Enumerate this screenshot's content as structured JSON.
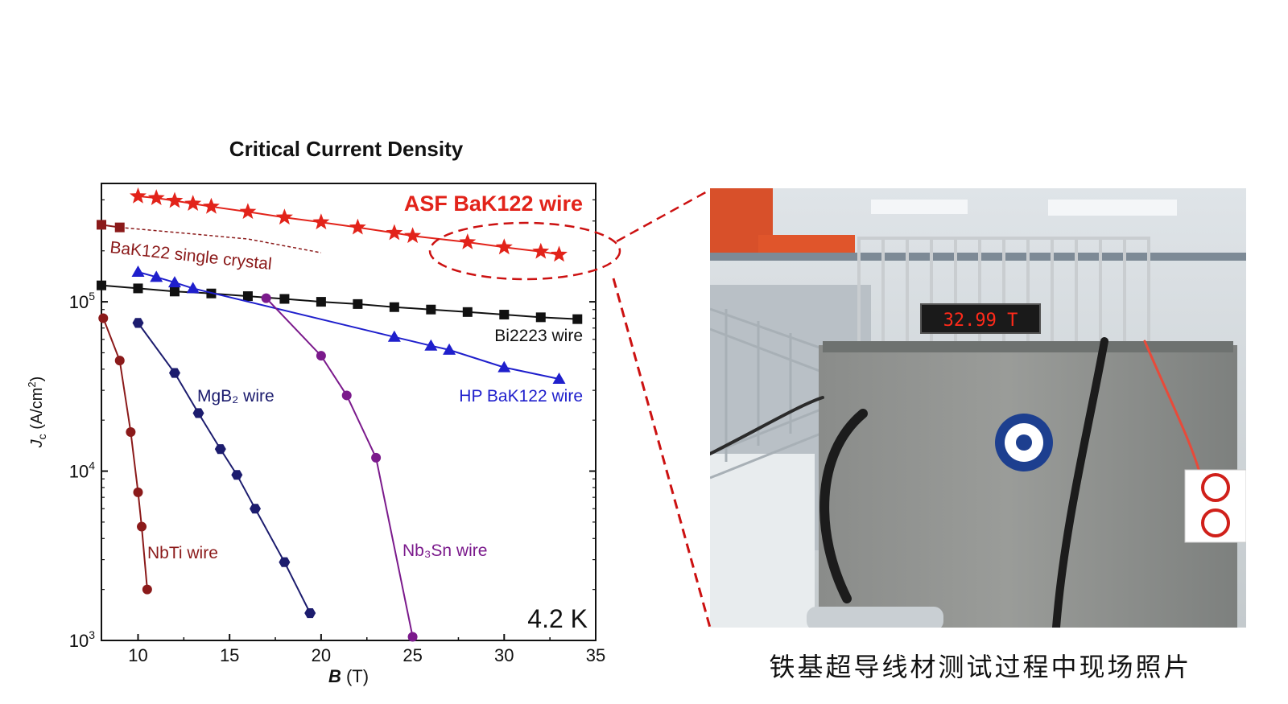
{
  "chart_data": {
    "type": "line",
    "title": "Critical Current Density",
    "xlabel": "B (T)",
    "ylabel": "Jc (A/cm²)",
    "xlim": [
      8,
      35
    ],
    "ylim": [
      1000,
      500000
    ],
    "yscale": "log",
    "xticks": [
      "10",
      "15",
      "20",
      "25",
      "30",
      "35"
    ],
    "yticks": [
      {
        "value": 100000,
        "base": "10",
        "exp": "5"
      },
      {
        "value": 10000,
        "base": "10",
        "exp": "4"
      },
      {
        "value": 1000,
        "base": "10",
        "exp": "3"
      }
    ],
    "annotation_temperature": "4.2 K",
    "series": [
      {
        "name": "ASF BaK122 wire",
        "color": "#e2231a",
        "marker": "star",
        "x": [
          10,
          11,
          12,
          13,
          14,
          16,
          18,
          20,
          22,
          24,
          25,
          28,
          30,
          32,
          33
        ],
        "y": [
          420000,
          410000,
          395000,
          380000,
          365000,
          340000,
          315000,
          295000,
          275000,
          255000,
          245000,
          225000,
          210000,
          198000,
          190000
        ]
      },
      {
        "name": "BaK122 single crystal",
        "color": "#8b1a1a",
        "marker": "square",
        "x": [
          8,
          9,
          16,
          20
        ],
        "y": [
          285000,
          275000,
          235000,
          195000
        ]
      },
      {
        "name": "Bi2223 wire",
        "color": "#111111",
        "marker": "square",
        "x": [
          8,
          10,
          12,
          14,
          16,
          18,
          20,
          22,
          24,
          26,
          28,
          30,
          32,
          34
        ],
        "y": [
          125000,
          120000,
          115000,
          112000,
          108000,
          104000,
          100000,
          97000,
          93000,
          90000,
          87000,
          84000,
          81000,
          79000
        ]
      },
      {
        "name": "HP BaK122 wire",
        "color": "#1f1fcc",
        "marker": "triangle",
        "x": [
          10,
          11,
          12,
          13,
          24,
          26,
          27,
          30,
          33
        ],
        "y": [
          150000,
          140000,
          130000,
          120000,
          62000,
          55000,
          52000,
          41000,
          35000
        ]
      },
      {
        "name": "MgB₂ wire",
        "color": "#1c1c6e",
        "marker": "hexagon",
        "x": [
          10,
          12,
          13.3,
          14.5,
          15.4,
          16.4,
          18,
          19.4
        ],
        "y": [
          75000,
          38000,
          22000,
          13500,
          9500,
          6000,
          2900,
          1450
        ]
      },
      {
        "name": "Nb₃Sn wire",
        "color": "#7b1a8c",
        "marker": "circle",
        "x": [
          17,
          20,
          21.4,
          23,
          25
        ],
        "y": [
          105000,
          48000,
          28000,
          12000,
          1050
        ]
      },
      {
        "name": "NbTi wire",
        "color": "#8b1a1a",
        "marker": "circle",
        "x": [
          8.1,
          9,
          9.6,
          10,
          10.2,
          10.5
        ],
        "y": [
          80000,
          45000,
          17000,
          7500,
          4700,
          2000
        ]
      }
    ]
  },
  "photo": {
    "caption": "铁基超导线材测试过程中现场照片",
    "display_reading": "32.99 T",
    "colors": {
      "display_led": "#ff2a1a",
      "callout_line": "#cc1111"
    }
  }
}
